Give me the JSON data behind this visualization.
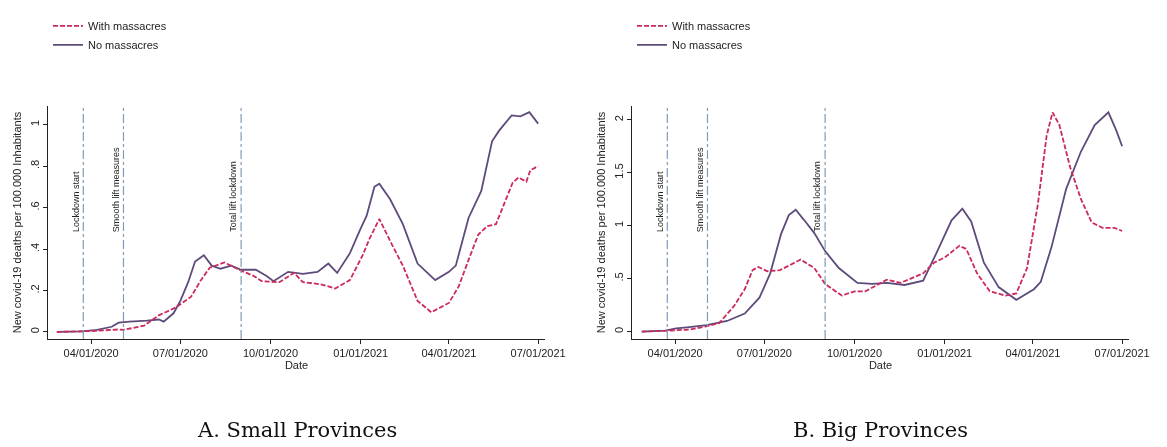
{
  "chart_data": [
    {
      "type": "line",
      "title": "A. Small Provinces",
      "xlabel": "Date",
      "ylabel": "New covid-19 deaths per 100.000 Inhabitants",
      "legend": "top left",
      "grid": false,
      "xlim": [
        "2020-02-17",
        "2021-07-08"
      ],
      "ylim": [
        -0.034,
        1.09
      ],
      "xticks": [
        {
          "value": "2020-04-01",
          "label": "04/01/2020"
        },
        {
          "value": "2020-07-01",
          "label": "07/01/2020"
        },
        {
          "value": "2020-10-01",
          "label": "10/01/2020"
        },
        {
          "value": "2021-01-01",
          "label": "01/01/2021"
        },
        {
          "value": "2021-04-01",
          "label": "04/01/2021"
        },
        {
          "value": "2021-07-01",
          "label": "07/01/2021"
        }
      ],
      "yticks": [
        {
          "value": 0,
          "label": "0"
        },
        {
          "value": 0.2,
          "label": ".2"
        },
        {
          "value": 0.4,
          "label": ".4"
        },
        {
          "value": 0.6,
          "label": ".6"
        },
        {
          "value": 0.8,
          "label": ".8"
        },
        {
          "value": 1,
          "label": "1"
        }
      ],
      "ref_lines": [
        {
          "axis": "x",
          "value": "2020-03-24",
          "label": "Lockdown start",
          "color": "#7f9cb8",
          "line_style": "dashdot"
        },
        {
          "axis": "x",
          "value": "2020-05-04",
          "label": "Smooth lift measures",
          "color": "#7f9cb8",
          "line_style": "dashdot"
        },
        {
          "axis": "x",
          "value": "2020-09-01",
          "label": "Total lift lockdown",
          "color": "#7f9cb8",
          "line_style": "dashdot"
        }
      ],
      "series": [
        {
          "name": "With massacres",
          "color": "#cc2a5c",
          "line_style": "dashed",
          "x": [
            "2020-02-26",
            "2020-04-05",
            "2020-04-29",
            "2020-05-04",
            "2020-05-25",
            "2020-06-09",
            "2020-06-27",
            "2020-07-12",
            "2020-07-22",
            "2020-07-31",
            "2020-08-15",
            "2020-08-30",
            "2020-09-14",
            "2020-09-22",
            "2020-10-10",
            "2020-10-25",
            "2020-11-03",
            "2020-11-21",
            "2020-12-06",
            "2020-12-21",
            "2021-01-03",
            "2021-01-10",
            "2021-01-20",
            "2021-02-02",
            "2021-02-13",
            "2021-02-28",
            "2021-03-14",
            "2021-04-01",
            "2021-04-11",
            "2021-04-22",
            "2021-05-01",
            "2021-05-10",
            "2021-05-19",
            "2021-06-05",
            "2021-06-11",
            "2021-06-19",
            "2021-06-23",
            "2021-07-01"
          ],
          "values": [
            0,
            0.005,
            0.012,
            0.01,
            0.03,
            0.08,
            0.12,
            0.17,
            0.25,
            0.31,
            0.335,
            0.3,
            0.27,
            0.245,
            0.24,
            0.285,
            0.24,
            0.23,
            0.21,
            0.25,
            0.37,
            0.45,
            0.545,
            0.42,
            0.32,
            0.15,
            0.095,
            0.14,
            0.22,
            0.36,
            0.47,
            0.51,
            0.52,
            0.72,
            0.745,
            0.725,
            0.78,
            0.8
          ]
        },
        {
          "name": "No massacres",
          "color": "#5e4b7b",
          "line_style": "solid",
          "x": [
            "2020-02-26",
            "2020-03-23",
            "2020-04-07",
            "2020-04-22",
            "2020-04-29",
            "2020-05-10",
            "2020-05-28",
            "2020-06-09",
            "2020-06-14",
            "2020-06-24",
            "2020-07-01",
            "2020-07-09",
            "2020-07-16",
            "2020-07-25",
            "2020-08-02",
            "2020-08-11",
            "2020-08-22",
            "2020-09-01",
            "2020-09-16",
            "2020-09-27",
            "2020-10-04",
            "2020-10-19",
            "2020-11-03",
            "2020-11-18",
            "2020-11-29",
            "2020-12-08",
            "2020-12-21",
            "2021-01-01",
            "2021-01-07",
            "2021-01-15",
            "2021-01-20",
            "2021-01-31",
            "2021-02-13",
            "2021-02-28",
            "2021-03-18",
            "2021-04-01",
            "2021-04-08",
            "2021-04-21",
            "2021-05-04",
            "2021-05-15",
            "2021-05-22",
            "2021-06-04",
            "2021-06-13",
            "2021-06-22",
            "2021-07-01"
          ],
          "values": [
            0,
            0.003,
            0.01,
            0.025,
            0.045,
            0.05,
            0.055,
            0.06,
            0.05,
            0.09,
            0.15,
            0.24,
            0.34,
            0.37,
            0.32,
            0.305,
            0.32,
            0.3,
            0.3,
            0.27,
            0.245,
            0.29,
            0.28,
            0.29,
            0.33,
            0.285,
            0.38,
            0.5,
            0.56,
            0.7,
            0.715,
            0.64,
            0.52,
            0.33,
            0.25,
            0.29,
            0.32,
            0.55,
            0.68,
            0.92,
            0.97,
            1.045,
            1.04,
            1.06,
            1.005
          ]
        }
      ]
    },
    {
      "type": "line",
      "title": "B. Big Provinces",
      "xlabel": "Date",
      "ylabel": "New covid-19 deaths per 100.000 Inhabitants",
      "legend": "top left",
      "grid": false,
      "xlim": [
        "2020-02-17",
        "2021-07-08"
      ],
      "ylim": [
        -0.07,
        2.13
      ],
      "xticks": [
        {
          "value": "2020-04-01",
          "label": "04/01/2020"
        },
        {
          "value": "2020-07-01",
          "label": "07/01/2020"
        },
        {
          "value": "2020-10-01",
          "label": "10/01/2020"
        },
        {
          "value": "2021-01-01",
          "label": "01/01/2021"
        },
        {
          "value": "2021-04-01",
          "label": "04/01/2021"
        },
        {
          "value": "2021-07-01",
          "label": "07/01/2021"
        }
      ],
      "yticks": [
        {
          "value": 0,
          "label": "0"
        },
        {
          "value": 0.5,
          "label": ".5"
        },
        {
          "value": 1,
          "label": "1"
        },
        {
          "value": 1.5,
          "label": "1.5"
        },
        {
          "value": 2,
          "label": "2"
        }
      ],
      "ref_lines": [
        {
          "axis": "x",
          "value": "2020-03-24",
          "label": "Lockdown start",
          "color": "#7f9cb8",
          "line_style": "dashdot"
        },
        {
          "axis": "x",
          "value": "2020-05-04",
          "label": "Smooth lift measures",
          "color": "#7f9cb8",
          "line_style": "dashdot"
        },
        {
          "axis": "x",
          "value": "2020-09-01",
          "label": "Total lift lockdown",
          "color": "#7f9cb8",
          "line_style": "dashdot"
        }
      ],
      "series": [
        {
          "name": "With massacres",
          "color": "#cc2a5c",
          "line_style": "dashed",
          "x": [
            "2020-02-27",
            "2020-03-26",
            "2020-04-17",
            "2020-05-03",
            "2020-05-16",
            "2020-05-31",
            "2020-06-11",
            "2020-06-19",
            "2020-06-25",
            "2020-07-04",
            "2020-07-17",
            "2020-08-07",
            "2020-08-21",
            "2020-09-01",
            "2020-09-18",
            "2020-10-01",
            "2020-10-12",
            "2020-11-03",
            "2020-11-17",
            "2020-12-10",
            "2020-12-21",
            "2021-01-01",
            "2021-01-16",
            "2021-01-23",
            "2021-02-03",
            "2021-02-16",
            "2021-03-04",
            "2021-03-15",
            "2021-03-26",
            "2021-04-06",
            "2021-04-15",
            "2021-04-21",
            "2021-04-28",
            "2021-05-09",
            "2021-05-20",
            "2021-05-31",
            "2021-06-11",
            "2021-06-23",
            "2021-07-01"
          ],
          "values": [
            0,
            0.01,
            0.02,
            0.05,
            0.08,
            0.24,
            0.4,
            0.58,
            0.61,
            0.57,
            0.58,
            0.68,
            0.6,
            0.45,
            0.34,
            0.38,
            0.38,
            0.49,
            0.46,
            0.55,
            0.65,
            0.7,
            0.81,
            0.78,
            0.55,
            0.38,
            0.34,
            0.36,
            0.6,
            1.2,
            1.85,
            2.07,
            1.95,
            1.55,
            1.25,
            1.03,
            0.98,
            0.98,
            0.95
          ]
        },
        {
          "name": "No massacres",
          "color": "#5e4b7b",
          "line_style": "solid",
          "x": [
            "2020-02-27",
            "2020-03-22",
            "2020-04-02",
            "2020-04-13",
            "2020-05-03",
            "2020-05-24",
            "2020-06-11",
            "2020-06-26",
            "2020-07-07",
            "2020-07-18",
            "2020-07-26",
            "2020-08-02",
            "2020-08-10",
            "2020-08-21",
            "2020-09-01",
            "2020-09-15",
            "2020-10-04",
            "2020-10-19",
            "2020-11-03",
            "2020-11-21",
            "2020-12-10",
            "2020-12-24",
            "2021-01-08",
            "2021-01-19",
            "2021-01-28",
            "2021-02-10",
            "2021-02-25",
            "2021-03-15",
            "2021-04-02",
            "2021-04-09",
            "2021-04-20",
            "2021-05-05",
            "2021-05-20",
            "2021-06-03",
            "2021-06-17",
            "2021-06-25",
            "2021-07-01"
          ],
          "values": [
            0,
            0.01,
            0.03,
            0.04,
            0.06,
            0.1,
            0.17,
            0.32,
            0.55,
            0.92,
            1.1,
            1.15,
            1.06,
            0.93,
            0.76,
            0.6,
            0.46,
            0.45,
            0.46,
            0.44,
            0.48,
            0.75,
            1.05,
            1.16,
            1.04,
            0.65,
            0.42,
            0.3,
            0.4,
            0.47,
            0.8,
            1.35,
            1.7,
            1.95,
            2.07,
            1.9,
            1.75
          ]
        }
      ]
    }
  ]
}
